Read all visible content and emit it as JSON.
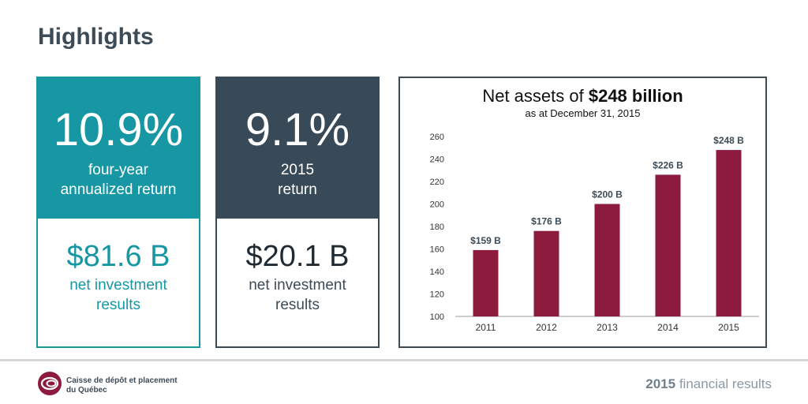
{
  "header": {
    "title": "Highlights"
  },
  "cards": [
    {
      "top_value": "10.9%",
      "top_line1": "four-year",
      "top_line2": "annualized return",
      "bottom_value": "$81.6 B",
      "bottom_line1": "net investment",
      "bottom_line2": "results"
    },
    {
      "top_value": "9.1%",
      "top_line1": "2015",
      "top_line2": "return",
      "bottom_value": "$20.1 B",
      "bottom_line1": "net investment",
      "bottom_line2": "results"
    }
  ],
  "chart_data": {
    "type": "bar",
    "title_prefix": "Net assets of ",
    "title_bold": "$248 billion",
    "subtitle": "as at December 31, 2015",
    "categories": [
      "2011",
      "2012",
      "2013",
      "2014",
      "2015"
    ],
    "values": [
      159,
      176,
      200,
      226,
      248
    ],
    "data_labels": [
      "$159 B",
      "$176 B",
      "$200 B",
      "$226 B",
      "$248 B"
    ],
    "ylim": [
      100,
      260
    ],
    "yticks": [
      100,
      120,
      140,
      160,
      180,
      200,
      220,
      240,
      260
    ],
    "xlabel": "",
    "ylabel": "",
    "bar_color": "#8c1b3e"
  },
  "footer": {
    "org_line1": "Caisse de dépôt et placement",
    "org_line2": "du Québec",
    "year": "2015",
    "label": "financial results"
  },
  "colors": {
    "teal": "#1796a3",
    "slate": "#384a57",
    "maroon": "#8c1b3e"
  }
}
